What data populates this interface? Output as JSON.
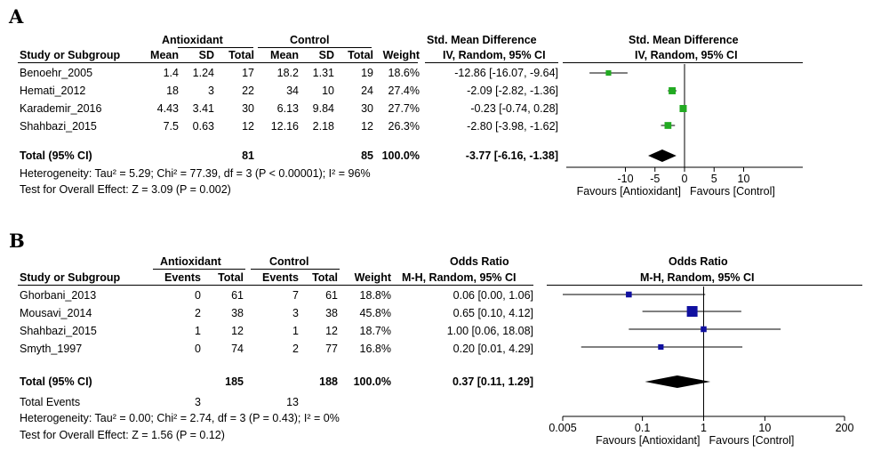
{
  "chart_data": [
    {
      "panel": "A",
      "type": "forest",
      "columns": {
        "group1": "Antioxidant",
        "group2": "Control",
        "study": "Study or Subgroup",
        "mean": "Mean",
        "sd": "SD",
        "total": "Total",
        "weight": "Weight",
        "effect_title": "Std. Mean Difference",
        "effect_method": "IV, Random, 95% CI"
      },
      "studies": [
        {
          "name": "Benoehr_2005",
          "m1": "1.4",
          "sd1": "1.24",
          "n1": "17",
          "m2": "18.2",
          "sd2": "1.31",
          "n2": "19",
          "weight": "18.6%",
          "ci_text": "-12.86 [-16.07, -9.64]",
          "est": -12.86,
          "lo": -16.07,
          "hi": -9.64
        },
        {
          "name": "Hemati_2012",
          "m1": "18",
          "sd1": "3",
          "n1": "22",
          "m2": "34",
          "sd2": "10",
          "n2": "24",
          "weight": "27.4%",
          "ci_text": "-2.09 [-2.82, -1.36]",
          "est": -2.09,
          "lo": -2.82,
          "hi": -1.36
        },
        {
          "name": "Karademir_2016",
          "m1": "4.43",
          "sd1": "3.41",
          "n1": "30",
          "m2": "6.13",
          "sd2": "9.84",
          "n2": "30",
          "weight": "27.7%",
          "ci_text": "-0.23 [-0.74, 0.28]",
          "est": -0.23,
          "lo": -0.74,
          "hi": 0.28
        },
        {
          "name": "Shahbazi_2015",
          "m1": "7.5",
          "sd1": "0.63",
          "n1": "12",
          "m2": "12.16",
          "sd2": "2.18",
          "n2": "12",
          "weight": "26.3%",
          "ci_text": "-2.80 [-3.98, -1.62]",
          "est": -2.8,
          "lo": -3.98,
          "hi": -1.62
        }
      ],
      "total": {
        "label": "Total (95% CI)",
        "n1": "81",
        "n2": "85",
        "weight": "100.0%",
        "ci_text": "-3.77 [-6.16, -1.38]",
        "est": -3.77,
        "lo": -6.16,
        "hi": -1.38
      },
      "heterogeneity": "Heterogeneity: Tau² = 5.29; Chi² = 77.39, df = 3 (P < 0.00001); I² = 96%",
      "overall_effect": "Test for Overall Effect: Z = 3.09 (P = 0.002)",
      "axis": {
        "scale": "linear",
        "min": -20,
        "max": 20,
        "ticks": [
          "-10",
          "-5",
          "0",
          "5",
          "10"
        ],
        "tick_values": [
          -10,
          -5,
          0,
          5,
          10
        ]
      },
      "favours_left": "Favours [Antioxidant]",
      "favours_right": "Favours [Control]",
      "marker_color": "#22aa22"
    },
    {
      "panel": "B",
      "type": "forest",
      "columns": {
        "group1": "Antioxidant",
        "group2": "Control",
        "study": "Study or Subgroup",
        "events": "Events",
        "total": "Total",
        "weight": "Weight",
        "effect_title": "Odds Ratio",
        "effect_method": "M-H, Random, 95% CI"
      },
      "studies": [
        {
          "name": "Ghorbani_2013",
          "e1": "0",
          "n1": "61",
          "e2": "7",
          "n2": "61",
          "weight": "18.8%",
          "ci_text": "0.06 [0.00, 1.06]",
          "est": 0.06,
          "lo": 0.0035,
          "hi": 1.06
        },
        {
          "name": "Mousavi_2014",
          "e1": "2",
          "n1": "38",
          "e2": "3",
          "n2": "38",
          "weight": "45.8%",
          "ci_text": "0.65 [0.10, 4.12]",
          "est": 0.65,
          "lo": 0.1,
          "hi": 4.12
        },
        {
          "name": "Shahbazi_2015",
          "e1": "1",
          "n1": "12",
          "e2": "1",
          "n2": "12",
          "weight": "18.7%",
          "ci_text": "1.00 [0.06, 18.08]",
          "est": 1.0,
          "lo": 0.06,
          "hi": 18.08
        },
        {
          "name": "Smyth_1997",
          "e1": "0",
          "n1": "74",
          "e2": "2",
          "n2": "77",
          "weight": "16.8%",
          "ci_text": "0.20 [0.01, 4.29]",
          "est": 0.2,
          "lo": 0.01,
          "hi": 4.29
        }
      ],
      "total": {
        "label": "Total (95% CI)",
        "n1": "185",
        "n2": "188",
        "weight": "100.0%",
        "ci_text": "0.37 [0.11, 1.29]",
        "est": 0.37,
        "lo": 0.11,
        "hi": 1.29
      },
      "total_events": {
        "label": "Total Events",
        "e1": "3",
        "e2": "13"
      },
      "heterogeneity": "Heterogeneity: Tau² = 0.00; Chi² = 2.74, df = 3 (P = 0.43); I² = 0%",
      "overall_effect": "Test for Overall Effect: Z = 1.56 (P = 0.12)",
      "axis": {
        "scale": "log",
        "min": 0.005,
        "max": 200,
        "ticks": [
          "0.005",
          "0.1",
          "1",
          "10",
          "200"
        ],
        "tick_values": [
          0.005,
          0.1,
          1,
          10,
          200
        ]
      },
      "favours_left": "Favours [Antioxidant]",
      "favours_right": "Favours [Control]",
      "marker_color": "#1010a0"
    }
  ]
}
